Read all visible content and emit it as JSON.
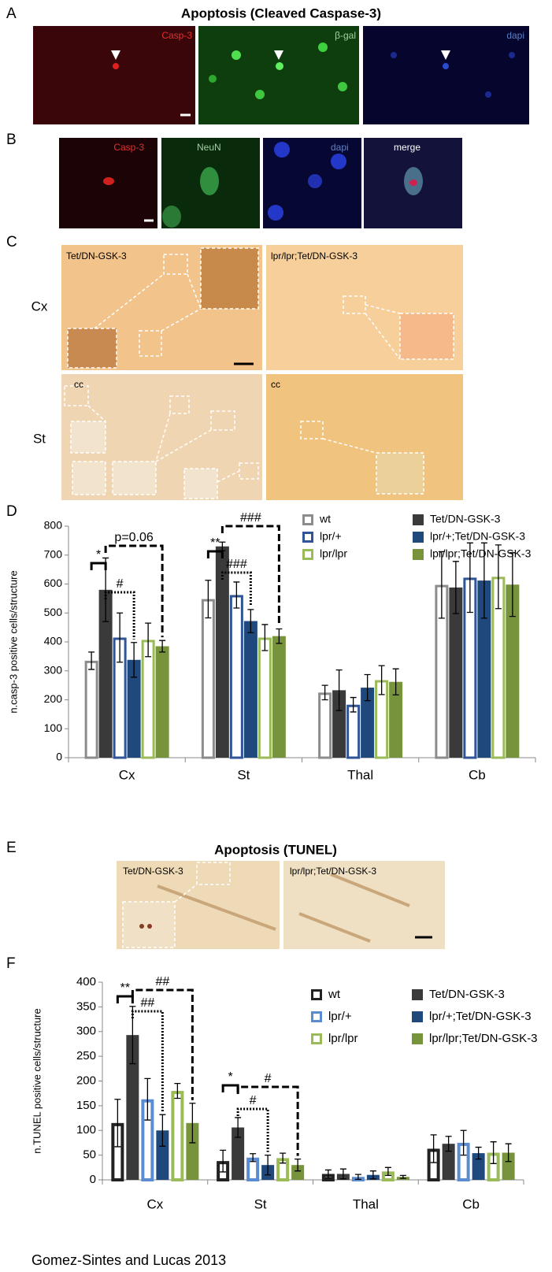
{
  "figure": {
    "panel_labels": [
      "A",
      "B",
      "C",
      "D",
      "E",
      "F"
    ],
    "title_a": "Apoptosis (Cleaved Caspase-3)",
    "a_labels": [
      "Casp-3",
      "β-gal",
      "dapi"
    ],
    "b_labels": [
      "Casp-3",
      "NeuN",
      "dapi",
      "merge"
    ],
    "c_labels": {
      "left": "Tet/DN-GSK-3",
      "right": "lpr/lpr;Tet/DN-GSK-3",
      "row1": "Cx",
      "row2": "St",
      "cc_left": "cc",
      "cc_right": "cc"
    },
    "title_e": "Apoptosis (TUNEL)",
    "e_labels": [
      "Tet/DN-GSK-3",
      "lpr/lpr;Tet/DN-GSK-3"
    ],
    "credit": "Gomez-Sintes and Lucas 2013"
  },
  "chart_data": [
    {
      "type": "bar",
      "ylabel": "n.casp-3 positive cells/structure",
      "categories": [
        "Cx",
        "St",
        "Thal",
        "Cb"
      ],
      "ylim": [
        0,
        800
      ],
      "yticks": [
        0,
        100,
        200,
        300,
        400,
        500,
        600,
        700,
        800
      ],
      "legend": "top-right",
      "series": [
        {
          "name": "wt",
          "color": "#8c8c8c",
          "style": "outline",
          "values": [
            335,
            548,
            225,
            597
          ],
          "errors": [
            30,
            65,
            25,
            115
          ]
        },
        {
          "name": "Tet/DN-GSK-3",
          "color": "#3a3a3a",
          "style": "filled",
          "values": [
            580,
            730,
            233,
            588
          ],
          "errors": [
            110,
            15,
            70,
            90
          ]
        },
        {
          "name": "lpr/+",
          "color": "#2f5597",
          "style": "outline",
          "values": [
            415,
            562,
            183,
            622
          ],
          "errors": [
            85,
            45,
            25,
            120
          ]
        },
        {
          "name": "lpr/+;Tet/DN-GSK-3",
          "color": "#1f497d",
          "style": "filled",
          "values": [
            338,
            472,
            242,
            612
          ],
          "errors": [
            60,
            40,
            45,
            130
          ]
        },
        {
          "name": "lpr/lpr",
          "color": "#9bbb59",
          "style": "outline",
          "values": [
            407,
            415,
            268,
            625
          ],
          "errors": [
            58,
            45,
            50,
            110
          ]
        },
        {
          "name": "lpr/lpr;Tet/DN-GSK-3",
          "color": "#77933c",
          "style": "filled",
          "values": [
            385,
            420,
            262,
            598
          ],
          "errors": [
            20,
            25,
            45,
            110
          ]
        }
      ],
      "annotations": [
        "*",
        "#",
        "p=0.06",
        "**",
        "###",
        "###"
      ]
    },
    {
      "type": "bar",
      "ylabel": "n.TUNEL positive cells/structure",
      "categories": [
        "Cx",
        "St",
        "Thal",
        "Cb"
      ],
      "ylim": [
        0,
        400
      ],
      "yticks": [
        0,
        50,
        100,
        150,
        200,
        250,
        300,
        350,
        400
      ],
      "legend": "top-right",
      "series": [
        {
          "name": "wt",
          "color": "#222222",
          "style": "outline",
          "values": [
            115,
            38,
            12,
            63
          ],
          "errors": [
            48,
            22,
            8,
            28
          ]
        },
        {
          "name": "Tet/DN-GSK-3",
          "color": "#3a3a3a",
          "style": "filled",
          "values": [
            293,
            106,
            12,
            73
          ],
          "errors": [
            58,
            20,
            10,
            15
          ]
        },
        {
          "name": "lpr/+",
          "color": "#5b8bd0",
          "style": "outline",
          "values": [
            163,
            45,
            6,
            75
          ],
          "errors": [
            42,
            8,
            5,
            25
          ]
        },
        {
          "name": "lpr/+;Tet/DN-GSK-3",
          "color": "#1f497d",
          "style": "filled",
          "values": [
            100,
            30,
            10,
            54
          ],
          "errors": [
            32,
            20,
            8,
            12
          ]
        },
        {
          "name": "lpr/lpr",
          "color": "#9bbb59",
          "style": "outline",
          "values": [
            180,
            44,
            17,
            55
          ],
          "errors": [
            15,
            10,
            8,
            22
          ]
        },
        {
          "name": "lpr/lpr;Tet/DN-GSK-3",
          "color": "#77933c",
          "style": "filled",
          "values": [
            115,
            30,
            6,
            55
          ],
          "errors": [
            40,
            12,
            3,
            18
          ]
        }
      ],
      "annotations": [
        "**",
        "##",
        "##",
        "*",
        "#",
        "#"
      ]
    }
  ]
}
